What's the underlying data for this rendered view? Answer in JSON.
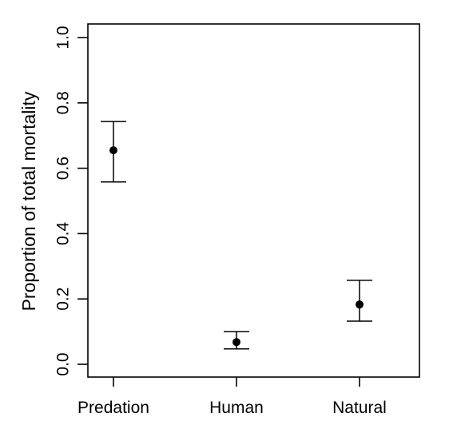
{
  "chart_data": {
    "type": "scatter",
    "subtype": "point-with-error-bars",
    "categories": [
      "Predation",
      "Human",
      "Natural"
    ],
    "values": [
      0.655,
      0.068,
      0.183
    ],
    "lower": [
      0.558,
      0.047,
      0.132
    ],
    "upper": [
      0.743,
      0.1,
      0.257
    ],
    "ylabel": "Proportion of total mortality",
    "xlabel": "",
    "ylim": [
      0.0,
      1.0
    ],
    "yticks": [
      "0.0",
      "0.2",
      "0.4",
      "0.6",
      "0.8",
      "1.0"
    ],
    "grid": false,
    "legend": "none",
    "colors": {
      "marker": "#000000",
      "axis": "#000000"
    }
  }
}
